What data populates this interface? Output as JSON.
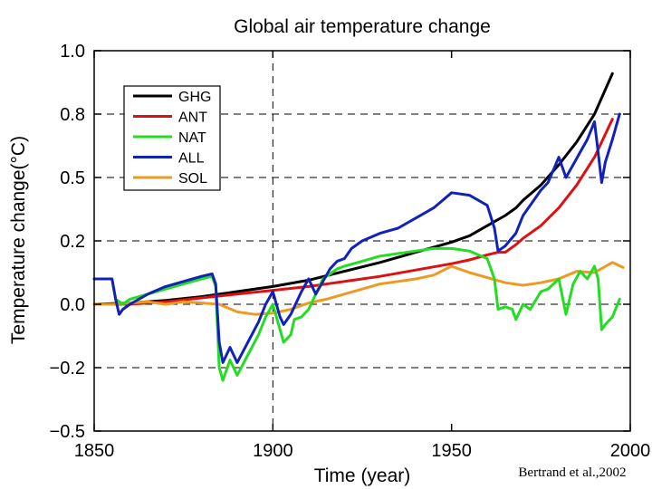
{
  "chart_data": {
    "type": "line",
    "title": "Global air temperature change",
    "xlabel": "Time (year)",
    "ylabel": "Temperature change(°C)",
    "credit": "Bertrand et al.,2002",
    "xlim": [
      1850,
      2000
    ],
    "ylim": [
      -0.5,
      1.0
    ],
    "x_ticks": [
      1850,
      1900,
      1950,
      2000
    ],
    "x_tick_labels": [
      "1850",
      "1900",
      "1950",
      "2000"
    ],
    "y_ticks": [
      1.0,
      0.75,
      0.5,
      0.25,
      0.0,
      -0.25,
      -0.5
    ],
    "y_tick_labels": [
      "1.0",
      "0.8",
      "0.5",
      "0.2",
      "0.0",
      "−0.2",
      "−0.5"
    ],
    "grid": "dashed lines at y = 0.75, 0.5, 0.25, 0.0, -0.25 and x = 1900",
    "legend_position": "upper-left",
    "series": [
      {
        "name": "GHG",
        "color": "#000000",
        "points": [
          [
            1850,
            0.0
          ],
          [
            1860,
            0.005
          ],
          [
            1870,
            0.015
          ],
          [
            1880,
            0.03
          ],
          [
            1890,
            0.05
          ],
          [
            1900,
            0.07
          ],
          [
            1910,
            0.095
          ],
          [
            1920,
            0.13
          ],
          [
            1930,
            0.165
          ],
          [
            1940,
            0.205
          ],
          [
            1950,
            0.245
          ],
          [
            1955,
            0.27
          ],
          [
            1960,
            0.31
          ],
          [
            1965,
            0.35
          ],
          [
            1968,
            0.38
          ],
          [
            1970,
            0.41
          ],
          [
            1975,
            0.47
          ],
          [
            1980,
            0.55
          ],
          [
            1985,
            0.64
          ],
          [
            1990,
            0.75
          ],
          [
            1995,
            0.91
          ]
        ]
      },
      {
        "name": "ANT",
        "color": "#dd1111",
        "points": [
          [
            1850,
            0.0
          ],
          [
            1860,
            0.0
          ],
          [
            1870,
            0.01
          ],
          [
            1880,
            0.025
          ],
          [
            1890,
            0.04
          ],
          [
            1900,
            0.055
          ],
          [
            1910,
            0.07
          ],
          [
            1920,
            0.09
          ],
          [
            1930,
            0.11
          ],
          [
            1940,
            0.135
          ],
          [
            1950,
            0.16
          ],
          [
            1955,
            0.175
          ],
          [
            1960,
            0.195
          ],
          [
            1963,
            0.205
          ],
          [
            1965,
            0.205
          ],
          [
            1968,
            0.235
          ],
          [
            1970,
            0.26
          ],
          [
            1975,
            0.31
          ],
          [
            1980,
            0.38
          ],
          [
            1985,
            0.47
          ],
          [
            1990,
            0.58
          ],
          [
            1995,
            0.73
          ]
        ]
      },
      {
        "name": "NAT",
        "color": "#22dd22",
        "points": [
          [
            1850,
            0.1
          ],
          [
            1855,
            0.1
          ],
          [
            1856,
            0.02
          ],
          [
            1858,
            0.0
          ],
          [
            1860,
            0.02
          ],
          [
            1865,
            0.04
          ],
          [
            1870,
            0.06
          ],
          [
            1875,
            0.08
          ],
          [
            1880,
            0.1
          ],
          [
            1883,
            0.11
          ],
          [
            1884,
            0.07
          ],
          [
            1885,
            -0.25
          ],
          [
            1886,
            -0.3
          ],
          [
            1888,
            -0.22
          ],
          [
            1890,
            -0.28
          ],
          [
            1893,
            -0.2
          ],
          [
            1896,
            -0.12
          ],
          [
            1898,
            -0.05
          ],
          [
            1900,
            0.0
          ],
          [
            1902,
            -0.1
          ],
          [
            1903,
            -0.15
          ],
          [
            1905,
            -0.12
          ],
          [
            1906,
            -0.06
          ],
          [
            1908,
            -0.05
          ],
          [
            1910,
            -0.02
          ],
          [
            1912,
            0.04
          ],
          [
            1914,
            0.1
          ],
          [
            1916,
            0.12
          ],
          [
            1918,
            0.14
          ],
          [
            1920,
            0.15
          ],
          [
            1925,
            0.17
          ],
          [
            1930,
            0.19
          ],
          [
            1935,
            0.2
          ],
          [
            1940,
            0.21
          ],
          [
            1945,
            0.22
          ],
          [
            1950,
            0.22
          ],
          [
            1955,
            0.21
          ],
          [
            1960,
            0.18
          ],
          [
            1962,
            0.1
          ],
          [
            1963,
            -0.02
          ],
          [
            1965,
            -0.01
          ],
          [
            1967,
            -0.02
          ],
          [
            1968,
            -0.06
          ],
          [
            1970,
            0.0
          ],
          [
            1972,
            -0.02
          ],
          [
            1975,
            0.05
          ],
          [
            1977,
            0.06
          ],
          [
            1980,
            0.1
          ],
          [
            1982,
            -0.04
          ],
          [
            1984,
            0.08
          ],
          [
            1986,
            0.13
          ],
          [
            1988,
            0.1
          ],
          [
            1990,
            0.15
          ],
          [
            1991,
            0.1
          ],
          [
            1992,
            -0.1
          ],
          [
            1993,
            -0.08
          ],
          [
            1995,
            -0.05
          ],
          [
            1997,
            0.02
          ]
        ]
      },
      {
        "name": "ALL",
        "color": "#1122bb",
        "points": [
          [
            1850,
            0.1
          ],
          [
            1855,
            0.1
          ],
          [
            1856,
            0.02
          ],
          [
            1857,
            -0.04
          ],
          [
            1858,
            -0.02
          ],
          [
            1860,
            0.0
          ],
          [
            1865,
            0.04
          ],
          [
            1870,
            0.07
          ],
          [
            1875,
            0.09
          ],
          [
            1880,
            0.11
          ],
          [
            1883,
            0.12
          ],
          [
            1884,
            0.08
          ],
          [
            1885,
            -0.15
          ],
          [
            1886,
            -0.23
          ],
          [
            1888,
            -0.17
          ],
          [
            1890,
            -0.23
          ],
          [
            1893,
            -0.15
          ],
          [
            1896,
            -0.07
          ],
          [
            1898,
            0.0
          ],
          [
            1900,
            0.05
          ],
          [
            1902,
            -0.05
          ],
          [
            1903,
            -0.08
          ],
          [
            1905,
            -0.04
          ],
          [
            1908,
            0.05
          ],
          [
            1910,
            0.1
          ],
          [
            1912,
            0.04
          ],
          [
            1914,
            0.09
          ],
          [
            1916,
            0.14
          ],
          [
            1918,
            0.17
          ],
          [
            1920,
            0.18
          ],
          [
            1922,
            0.22
          ],
          [
            1925,
            0.25
          ],
          [
            1930,
            0.28
          ],
          [
            1935,
            0.3
          ],
          [
            1940,
            0.34
          ],
          [
            1945,
            0.38
          ],
          [
            1950,
            0.44
          ],
          [
            1955,
            0.43
          ],
          [
            1960,
            0.39
          ],
          [
            1962,
            0.3
          ],
          [
            1963,
            0.21
          ],
          [
            1965,
            0.23
          ],
          [
            1968,
            0.28
          ],
          [
            1970,
            0.35
          ],
          [
            1975,
            0.45
          ],
          [
            1977,
            0.48
          ],
          [
            1980,
            0.58
          ],
          [
            1982,
            0.5
          ],
          [
            1984,
            0.55
          ],
          [
            1986,
            0.6
          ],
          [
            1988,
            0.65
          ],
          [
            1990,
            0.72
          ],
          [
            1991,
            0.6
          ],
          [
            1992,
            0.48
          ],
          [
            1993,
            0.56
          ],
          [
            1995,
            0.65
          ],
          [
            1997,
            0.75
          ]
        ]
      },
      {
        "name": "SOL",
        "color": "#ee9922",
        "points": [
          [
            1850,
            0.0
          ],
          [
            1855,
            0.0
          ],
          [
            1860,
            0.005
          ],
          [
            1865,
            0.01
          ],
          [
            1870,
            0.0
          ],
          [
            1875,
            0.01
          ],
          [
            1880,
            0.005
          ],
          [
            1885,
            0.0
          ],
          [
            1890,
            -0.03
          ],
          [
            1895,
            -0.04
          ],
          [
            1900,
            -0.035
          ],
          [
            1905,
            -0.02
          ],
          [
            1910,
            0.005
          ],
          [
            1915,
            0.02
          ],
          [
            1920,
            0.04
          ],
          [
            1925,
            0.06
          ],
          [
            1930,
            0.08
          ],
          [
            1935,
            0.09
          ],
          [
            1940,
            0.1
          ],
          [
            1945,
            0.115
          ],
          [
            1950,
            0.15
          ],
          [
            1955,
            0.125
          ],
          [
            1960,
            0.105
          ],
          [
            1965,
            0.085
          ],
          [
            1970,
            0.075
          ],
          [
            1975,
            0.085
          ],
          [
            1980,
            0.1
          ],
          [
            1985,
            0.13
          ],
          [
            1990,
            0.125
          ],
          [
            1995,
            0.165
          ],
          [
            1998,
            0.145
          ]
        ]
      }
    ]
  }
}
